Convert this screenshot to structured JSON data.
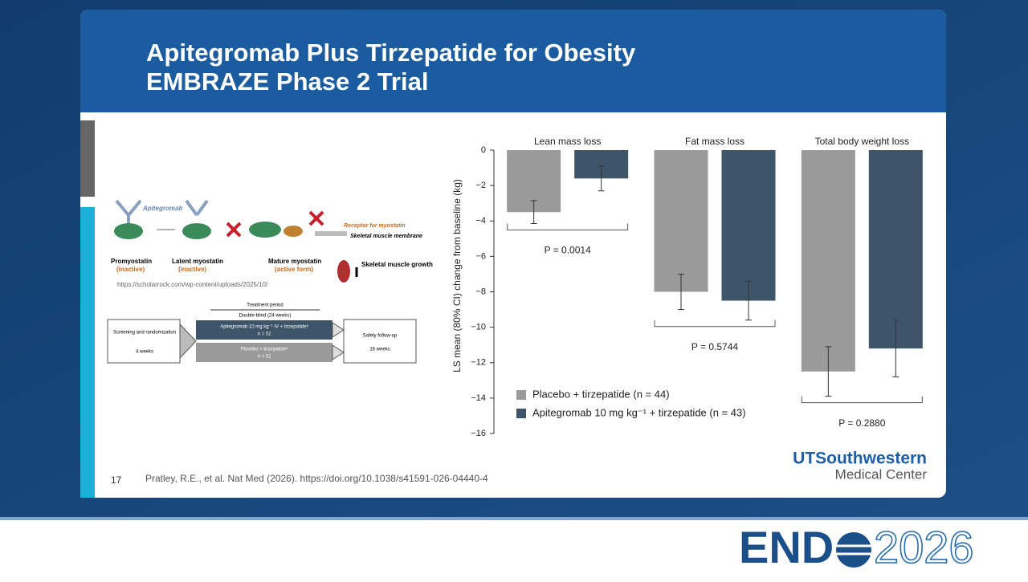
{
  "slide": {
    "title_lines": [
      "Apitegromab Plus Tirzepatide for Obesity",
      "EMBRAZE Phase 2 Trial"
    ],
    "slide_number": "17",
    "citation": "Pratley, R.E., et al. Nat Med (2026). https://doi.org/10.1038/s41591-026-04440-4",
    "diagram": {
      "drug": "Apitegromab",
      "stages": [
        {
          "name": "Promyostatin",
          "state": "(inactive)"
        },
        {
          "name": "Latent myostatin",
          "state": "(inactive)"
        },
        {
          "name": "Mature myostatin",
          "state": "(active form)"
        }
      ],
      "receptor": "Receptor for myostatin",
      "membrane": "Skeletal muscle membrane",
      "growth": "Skeletal muscle growth",
      "source_url": "https://scholarrock.com/wp-content/uploads/2025/10/"
    },
    "design": {
      "treatment_period": "Treatment period",
      "double_blind": "Double-blind (24 weeks)",
      "screening": "Screening and randomization",
      "screening_duration": "4 weeks",
      "arm_active": "Apitegromab 10 mg kg⁻¹ IV + tirzepatideᵃ",
      "arm_active_n": "n = 51",
      "arm_placebo": "Placebo + tirzepatideᵃ",
      "arm_placebo_n": "n = 51",
      "followup": "Safety follow-up",
      "followup_duration": "16 weeks"
    },
    "logo_utsw": {
      "brand": "UTSouthwestern",
      "sub": "Medical Center"
    },
    "logo_endo": {
      "left": "END",
      "right": "2026"
    }
  },
  "chart_data": {
    "type": "bar",
    "ylabel": "LS mean (80% CI) change from baseline (kg)",
    "categories": [
      "Lean mass loss",
      "Fat mass loss",
      "Total body weight loss"
    ],
    "series": [
      {
        "name": "Placebo + tirzepatide (n = 44)",
        "color": "#9a9a9a",
        "values": [
          -3.5,
          -8.0,
          -12.5
        ],
        "errors": [
          0.65,
          1.0,
          1.4
        ]
      },
      {
        "name": "Apitegromab 10 mg kg⁻¹ + tirzepatide (n = 43)",
        "color": "#3e5569",
        "values": [
          -1.6,
          -8.5,
          -11.2
        ],
        "errors": [
          0.7,
          1.1,
          1.6
        ]
      }
    ],
    "annotations": [
      "P = 0.0014",
      "P = 0.5744",
      "P = 0.2880"
    ],
    "ylim": [
      -16,
      0
    ],
    "yticks": [
      0,
      {
        "value": -2,
        "label": "−2"
      },
      {
        "value": -4,
        "label": "−4"
      },
      {
        "value": -6,
        "label": "−6"
      },
      {
        "value": -8,
        "label": "−8"
      },
      {
        "value": -10,
        "label": "−10"
      },
      {
        "value": -12,
        "label": "−12"
      },
      {
        "value": -14,
        "label": "−14"
      },
      {
        "value": -16,
        "label": "−16"
      }
    ],
    "legend": "lower left"
  }
}
